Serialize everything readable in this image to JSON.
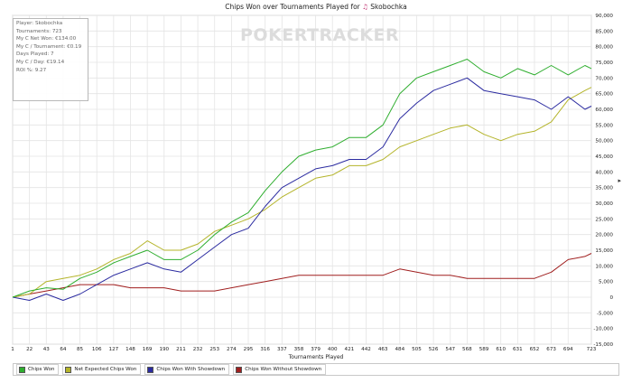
{
  "chart_data": {
    "type": "line",
    "title": "Chips Won over Tournaments Played for",
    "title_icon": "player-icon",
    "player": "Skobochka",
    "watermark": "POKERTRACKER",
    "xlabel": "Tournaments Played",
    "ylabel": "",
    "ylim": [
      -15000,
      90000
    ],
    "yticks": [
      90000,
      85000,
      80000,
      75000,
      70000,
      65000,
      60000,
      55000,
      50000,
      45000,
      40000,
      35000,
      30000,
      25000,
      20000,
      15000,
      10000,
      5000,
      0,
      -5000,
      -10000,
      -15000
    ],
    "ytick_labels": [
      "90,000",
      "85,000",
      "80,000",
      "75,000",
      "70,000",
      "65,000",
      "60,000",
      "55,000",
      "50,000",
      "45,000",
      "40,000",
      "35,000",
      "30,000",
      "25,000",
      "20,000",
      "15,000",
      "10,000",
      "5,000",
      "0",
      "-5,000",
      "-10,000",
      "-15,000"
    ],
    "xlim": [
      1,
      723
    ],
    "xticks": [
      1,
      22,
      43,
      64,
      85,
      106,
      127,
      148,
      169,
      190,
      211,
      232,
      253,
      274,
      295,
      316,
      337,
      358,
      379,
      400,
      421,
      442,
      463,
      484,
      505,
      526,
      547,
      568,
      589,
      610,
      631,
      652,
      673,
      694,
      723
    ],
    "grid": true,
    "legend_position": "bottom",
    "x": [
      1,
      22,
      43,
      64,
      85,
      106,
      127,
      148,
      169,
      190,
      211,
      232,
      253,
      274,
      295,
      316,
      337,
      358,
      379,
      400,
      421,
      442,
      463,
      484,
      505,
      526,
      547,
      568,
      589,
      610,
      631,
      652,
      673,
      694,
      715,
      723
    ],
    "series": [
      {
        "name": "Chips Won",
        "color": "#2fae2f",
        "values": [
          0,
          2000,
          3000,
          2500,
          6000,
          8000,
          11000,
          13000,
          15000,
          12000,
          12000,
          15000,
          20000,
          24000,
          27000,
          34000,
          40000,
          45000,
          47000,
          48000,
          51000,
          51000,
          55000,
          65000,
          70000,
          72000,
          74000,
          76000,
          72000,
          70000,
          73000,
          71000,
          74000,
          71000,
          74000,
          73000
        ]
      },
      {
        "name": "Net Expected Chips Won",
        "color": "#b4b42a",
        "values": [
          0,
          1000,
          5000,
          6000,
          7000,
          9000,
          12000,
          14000,
          18000,
          15000,
          15000,
          17000,
          21000,
          23000,
          25000,
          28000,
          32000,
          35000,
          38000,
          39000,
          42000,
          42000,
          44000,
          48000,
          50000,
          52000,
          54000,
          55000,
          52000,
          50000,
          52000,
          53000,
          56000,
          63000,
          66000,
          67000
        ]
      },
      {
        "name": "Chips Won With Showdown",
        "color": "#2b2ba0",
        "values": [
          0,
          -1000,
          1000,
          -1000,
          1000,
          4000,
          7000,
          9000,
          11000,
          9000,
          8000,
          12000,
          16000,
          20000,
          22000,
          29000,
          35000,
          38000,
          41000,
          42000,
          44000,
          44000,
          48000,
          57000,
          62000,
          66000,
          68000,
          70000,
          66000,
          65000,
          64000,
          63000,
          60000,
          64000,
          60000,
          61000
        ]
      },
      {
        "name": "Chips Won Without Showdown",
        "color": "#a01f1f",
        "values": [
          0,
          1000,
          2000,
          3000,
          4000,
          4000,
          4000,
          3000,
          3000,
          3000,
          2000,
          2000,
          2000,
          3000,
          4000,
          5000,
          6000,
          7000,
          7000,
          7000,
          7000,
          7000,
          7000,
          9000,
          8000,
          7000,
          7000,
          6000,
          6000,
          6000,
          6000,
          6000,
          8000,
          12000,
          13000,
          14000
        ]
      }
    ]
  },
  "stats": {
    "player": "Player: Skobochka",
    "tournaments": "Tournaments: 723",
    "net_won": "My C Net Won: €134.00",
    "per_tournament": "My C / Tournament: €0.19",
    "days_played": "Days Played: 7",
    "per_day": "My C / Day: €19.14",
    "roi": "ROI %: 9.27"
  }
}
